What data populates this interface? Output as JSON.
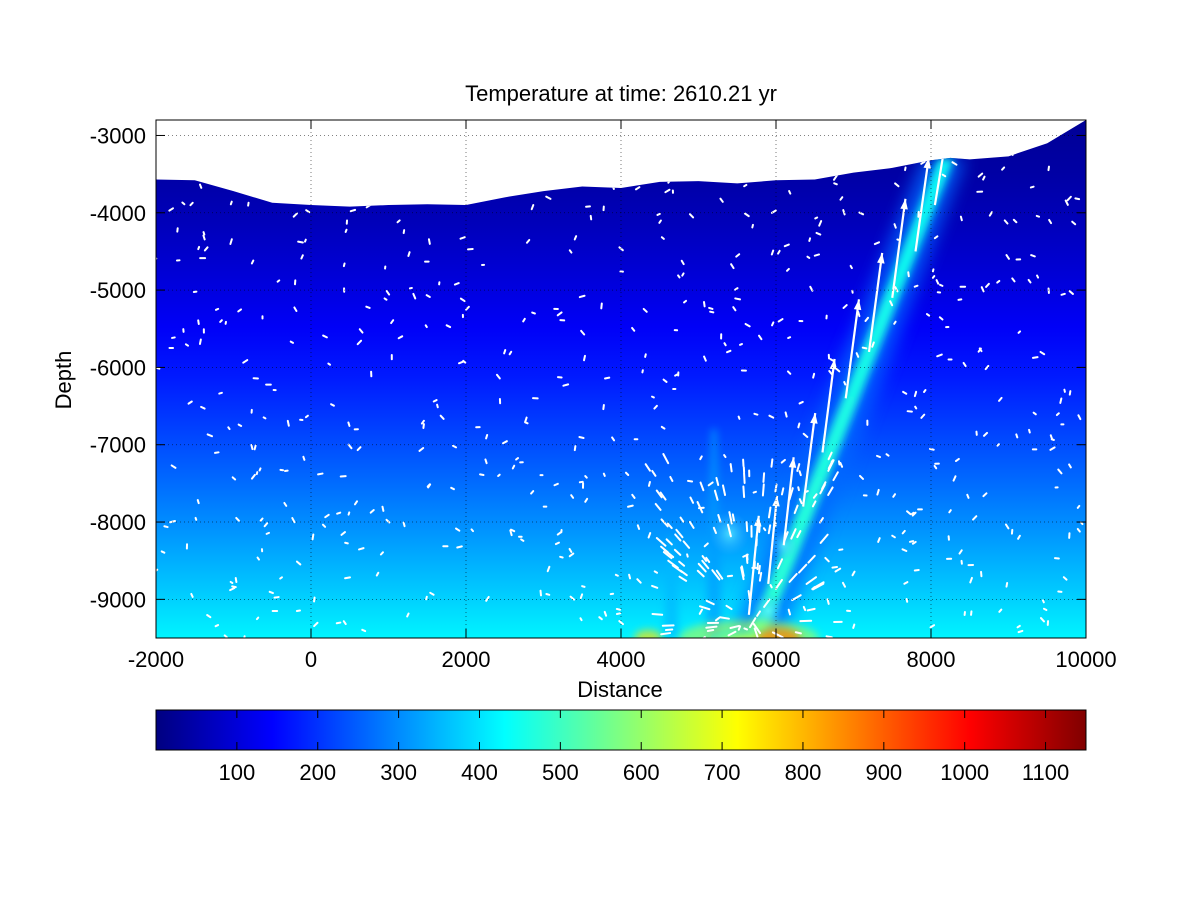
{
  "figure": {
    "title": "Temperature at time:  2610.21 yr"
  },
  "chart_data": {
    "type": "heatmap",
    "title": "Temperature at time:  2610.21 yr",
    "xlabel": "Distance",
    "ylabel": "Depth",
    "xlim": [
      -2000,
      10000
    ],
    "ylim": [
      -9500,
      -2800
    ],
    "x_ticks": [
      -2000,
      0,
      2000,
      4000,
      6000,
      8000,
      10000
    ],
    "y_ticks": [
      -3000,
      -4000,
      -5000,
      -6000,
      -7000,
      -8000,
      -9000
    ],
    "grid": true,
    "colormap": "jet",
    "colorbar": {
      "location": "bottom",
      "range": [
        0,
        1150
      ],
      "ticks": [
        100,
        200,
        300,
        400,
        500,
        600,
        700,
        800,
        900,
        1000,
        1100
      ]
    },
    "temperature_field": {
      "background_top": 25,
      "background_bottom": 420,
      "vent_plume": {
        "x_bottom": 5700,
        "x_top": 8250,
        "y_top": -3300,
        "peak_temperature": 480
      },
      "heat_source": {
        "x": 5650,
        "y": -9500,
        "peak_temperature": 1100
      },
      "secondary_plumes": [
        {
          "x": 4650,
          "y_top": -8200,
          "peak_temperature": 350
        },
        {
          "x": 5200,
          "y_top": -6800,
          "peak_temperature": 320
        }
      ]
    },
    "seafloor_profile": {
      "x": [
        -2000,
        -1500,
        -1000,
        -500,
        0,
        500,
        1000,
        1500,
        2000,
        2500,
        3000,
        3500,
        4000,
        4500,
        5000,
        5500,
        6000,
        6500,
        7000,
        7500,
        8000,
        8250,
        8500,
        9000,
        9500,
        10000
      ],
      "depth": [
        -3570,
        -3580,
        -3720,
        -3870,
        -3900,
        -3920,
        -3900,
        -3890,
        -3900,
        -3800,
        -3720,
        -3660,
        -3680,
        -3600,
        -3590,
        -3620,
        -3580,
        -3570,
        -3480,
        -3420,
        -3320,
        -3290,
        -3310,
        -3270,
        -3100,
        -2800
      ]
    },
    "velocity_vectors": {
      "color": "#ffffff",
      "plume_arrows": [
        {
          "x": 5650,
          "y": -9200,
          "u": 90,
          "v": 900
        },
        {
          "x": 5900,
          "y": -8800,
          "u": 80,
          "v": 800
        },
        {
          "x": 6100,
          "y": -8300,
          "u": 90,
          "v": 800
        },
        {
          "x": 6350,
          "y": -7800,
          "u": 110,
          "v": 850
        },
        {
          "x": 6600,
          "y": -7100,
          "u": 110,
          "v": 850
        },
        {
          "x": 6900,
          "y": -6400,
          "u": 120,
          "v": 900
        },
        {
          "x": 7200,
          "y": -5800,
          "u": 120,
          "v": 900
        },
        {
          "x": 7500,
          "y": -5100,
          "u": 120,
          "v": 900
        },
        {
          "x": 7800,
          "y": -4500,
          "u": 120,
          "v": 850
        },
        {
          "x": 8050,
          "y": -3900,
          "u": 100,
          "v": 600
        }
      ]
    }
  }
}
